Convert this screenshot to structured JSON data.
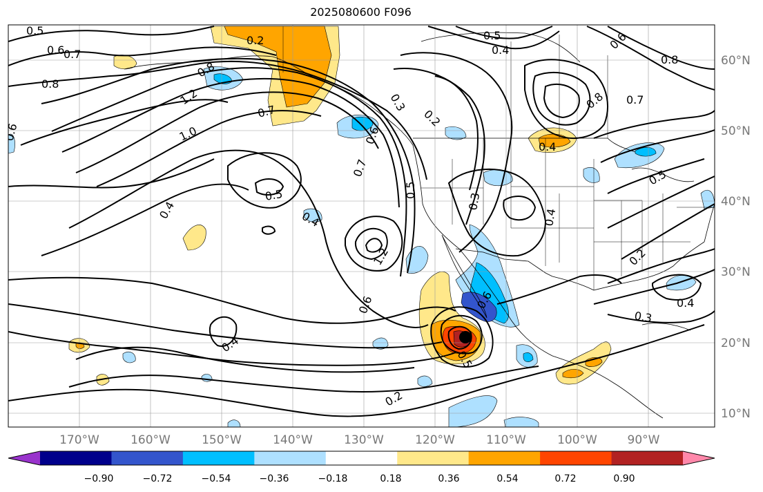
{
  "title": "2025080600 F096",
  "lon_ticks": [
    "170°W",
    "160°W",
    "150°W",
    "140°W",
    "130°W",
    "120°W",
    "110°W",
    "100°W",
    "90°W"
  ],
  "lat_ticks": [
    "60°N",
    "50°N",
    "40°N",
    "30°N",
    "20°N",
    "10°N"
  ],
  "colorbar": {
    "colors": [
      "#9933cc",
      "#00008b",
      "#3355cc",
      "#00bfff",
      "#aee0ff",
      "#ffffff",
      "#ffe88a",
      "#ffa500",
      "#ff4500",
      "#b22222",
      "#ff88aa"
    ],
    "tick_labels": [
      "−0.90",
      "−0.72",
      "−0.54",
      "−0.36",
      "−0.18",
      "0.18",
      "0.36",
      "0.54",
      "0.72",
      "0.90"
    ]
  },
  "contour_labels": [
    "0.5",
    "0.6",
    "0.7",
    "0.8",
    "0.2",
    "0.6",
    "0.5",
    "0.4",
    "0.8",
    "0.6",
    "0.7",
    "0.8",
    "1.2",
    "1.0",
    "0.7",
    "0.3",
    "0.2",
    "0.6",
    "0.5",
    "0.8",
    "0.6",
    "0.7",
    "0.5",
    "0.4",
    "0.3",
    "0.4",
    "0.4",
    "1.2",
    "0.5",
    "0.6",
    "0.4",
    "0.5",
    "0.2",
    "0.4",
    "0.3",
    "0.2",
    "0.4"
  ],
  "chart_data": {
    "type": "map",
    "title": "2025080600 F096",
    "lon_range": [
      -180,
      -80
    ],
    "lat_range": [
      8,
      65
    ],
    "colorbar_levels": [
      -0.9,
      -0.72,
      -0.54,
      -0.36,
      -0.18,
      0.18,
      0.36,
      0.54,
      0.72,
      0.9
    ],
    "marker": {
      "lon": -115,
      "lat": 20.7
    }
  }
}
